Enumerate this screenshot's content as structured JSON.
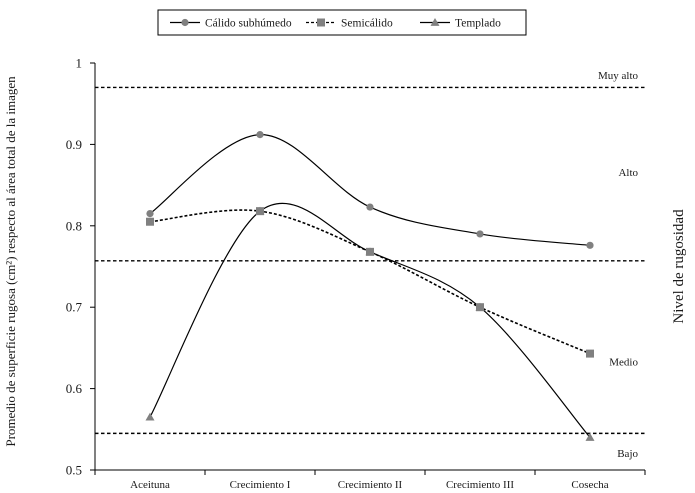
{
  "chart_data": {
    "type": "line",
    "title": "",
    "xlabel": "",
    "ylabel": "Promedio de superficie rugosa (cm²) respecto al área total de la imagen",
    "right_label": "Nivel de rugosidad",
    "categories": [
      "Aceituna",
      "Crecimiento I",
      "Crecimiento II",
      "Crecimiento III",
      "Cosecha"
    ],
    "ylim": [
      0.5,
      1
    ],
    "yticks": [
      {
        "value": 0.5,
        "label": "0.5"
      },
      {
        "value": 0.6,
        "label": "0.6"
      },
      {
        "value": 0.7,
        "label": "0.7"
      },
      {
        "value": 0.8,
        "label": "0.8"
      },
      {
        "value": 0.9,
        "label": "0.9"
      },
      {
        "value": 1.0,
        "label": "1"
      }
    ],
    "grid": false,
    "legend_position": "top",
    "series": [
      {
        "name": "Cálido subhúmedo",
        "marker": "circle",
        "line": "solid",
        "color": "#808080",
        "values": [
          0.815,
          0.912,
          0.823,
          0.79,
          0.776
        ]
      },
      {
        "name": "Semicálido",
        "marker": "square",
        "line": "dashed",
        "color": "#808080",
        "values": [
          0.805,
          0.818,
          0.768,
          0.7,
          0.643
        ]
      },
      {
        "name": "Templado",
        "marker": "triangle",
        "line": "solid",
        "color": "#808080",
        "values": [
          0.565,
          0.818,
          0.768,
          0.7,
          0.54
        ]
      }
    ],
    "thresholds": [
      {
        "value": 0.97
      },
      {
        "value": 0.757
      },
      {
        "value": 0.545
      }
    ],
    "level_labels": [
      {
        "label": "Muy alto",
        "value": 0.985
      },
      {
        "label": "Alto",
        "value": 0.866
      },
      {
        "label": "Medio",
        "value": 0.633
      },
      {
        "label": "Bajo",
        "value": 0.521
      }
    ]
  }
}
